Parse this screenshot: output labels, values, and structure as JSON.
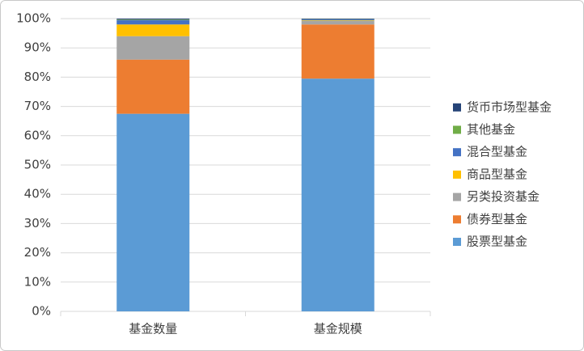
{
  "chart_data": {
    "type": "stacked_bar",
    "categories": [
      "基金数量",
      "基金规模"
    ],
    "series": [
      {
        "name": "股票型基金",
        "color": "#5b9bd5",
        "values": [
          67.5,
          79.5
        ]
      },
      {
        "name": "债券型基金",
        "color": "#ed7d31",
        "values": [
          18.5,
          18.5
        ]
      },
      {
        "name": "另类投资基金",
        "color": "#a5a5a5",
        "values": [
          8,
          1.2
        ]
      },
      {
        "name": "商品型基金",
        "color": "#ffc000",
        "values": [
          4,
          0.2
        ]
      },
      {
        "name": "混合型基金",
        "color": "#4472c4",
        "values": [
          1.5,
          0.3
        ]
      },
      {
        "name": "其他基金",
        "color": "#70ad47",
        "values": [
          0.2,
          0.1
        ]
      },
      {
        "name": "货币市场型基金",
        "color": "#264478",
        "values": [
          0.3,
          0.2
        ]
      }
    ],
    "ylim": [
      0,
      100
    ],
    "yticks": [
      {
        "value": 0,
        "label": "0%"
      },
      {
        "value": 10,
        "label": "10%"
      },
      {
        "value": 20,
        "label": "20%"
      },
      {
        "value": 30,
        "label": "30%"
      },
      {
        "value": 40,
        "label": "40%"
      },
      {
        "value": 50,
        "label": "50%"
      },
      {
        "value": 60,
        "label": "60%"
      },
      {
        "value": 70,
        "label": "70%"
      },
      {
        "value": 80,
        "label": "80%"
      },
      {
        "value": 90,
        "label": "90%"
      },
      {
        "value": 100,
        "label": "100%"
      }
    ],
    "grid": true,
    "legend": "right"
  }
}
